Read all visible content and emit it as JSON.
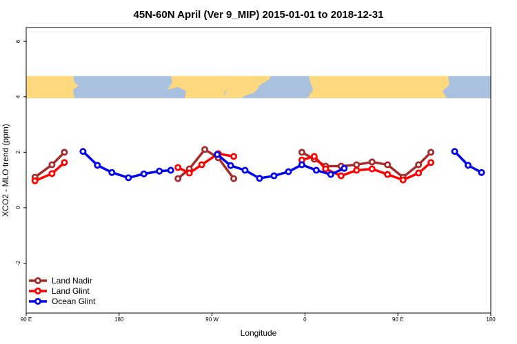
{
  "chart_data": {
    "type": "line",
    "title": "45N-60N April (Ver 9_MIP)   2015-01-01 to 2018-12-31",
    "xlabel": "Longitude",
    "ylabel": "XCO2 - MLO trend (ppm)",
    "xlim": [
      90,
      540
    ],
    "ylim": [
      -3.8,
      6.5
    ],
    "x_ticks": [
      {
        "value": 90,
        "label": "90 E"
      },
      {
        "value": 180,
        "label": "180"
      },
      {
        "value": 270,
        "label": "90 W"
      },
      {
        "value": 360,
        "label": "0"
      },
      {
        "value": 450,
        "label": "90 E"
      },
      {
        "value": 540,
        "label": "180"
      }
    ],
    "y_ticks": [
      {
        "value": -2,
        "label": "-2"
      },
      {
        "value": 0,
        "label": "0"
      },
      {
        "value": 2,
        "label": "2"
      },
      {
        "value": 4,
        "label": "4"
      },
      {
        "value": 6,
        "label": "6"
      }
    ],
    "map_band": {
      "ymin": 3.95,
      "ymax": 4.75,
      "ocean_color": "#a9c0df",
      "land_color": "#fcd87e"
    },
    "legend_position": "bottom-left",
    "series": [
      {
        "name": "Land Nadir",
        "color": "#a52a2a",
        "segments": [
          [
            [
              98.5,
              1.1
            ],
            [
              115,
              1.55
            ],
            [
              127,
              2.0
            ]
          ],
          [
            [
              237,
              1.05
            ],
            [
              248,
              1.4
            ],
            [
              263,
              2.1
            ],
            [
              276,
              1.8
            ],
            [
              291,
              1.05
            ]
          ],
          [
            [
              357,
              2.0
            ],
            [
              369,
              1.75
            ],
            [
              380,
              1.5
            ],
            [
              395,
              1.5
            ],
            [
              410,
              1.55
            ],
            [
              425,
              1.65
            ],
            [
              440,
              1.55
            ],
            [
              455,
              1.1
            ],
            [
              470,
              1.55
            ],
            [
              482,
              2.0
            ]
          ]
        ]
      },
      {
        "name": "Land Glint",
        "color": "#ff0000",
        "segments": [
          [
            [
              98.5,
              0.97
            ],
            [
              115,
              1.23
            ],
            [
              127,
              1.63
            ]
          ],
          [
            [
              237,
              1.45
            ],
            [
              248,
              1.25
            ],
            [
              260,
              1.55
            ],
            [
              276,
              1.95
            ],
            [
              291,
              1.85
            ]
          ],
          [
            [
              357,
              1.72
            ],
            [
              369,
              1.85
            ],
            [
              380,
              1.4
            ],
            [
              395,
              1.15
            ],
            [
              410,
              1.35
            ],
            [
              425,
              1.4
            ],
            [
              440,
              1.2
            ],
            [
              455,
              1.0
            ],
            [
              470,
              1.25
            ],
            [
              482,
              1.63
            ]
          ]
        ]
      },
      {
        "name": "Ocean Glint",
        "color": "#0000ee",
        "segments": [
          [
            [
              145,
              2.03
            ],
            [
              159,
              1.53
            ],
            [
              173,
              1.27
            ],
            [
              189,
              1.08
            ],
            [
              204,
              1.22
            ],
            [
              219,
              1.32
            ],
            [
              230,
              1.35
            ]
          ],
          [
            [
              275,
              1.92
            ],
            [
              288,
              1.52
            ],
            [
              302,
              1.35
            ],
            [
              316,
              1.06
            ],
            [
              330,
              1.15
            ],
            [
              344,
              1.3
            ],
            [
              357,
              1.55
            ],
            [
              371,
              1.35
            ],
            [
              385,
              1.2
            ],
            [
              398,
              1.42
            ]
          ],
          [
            [
              505,
              2.03
            ],
            [
              518,
              1.53
            ],
            [
              531,
              1.27
            ]
          ]
        ]
      }
    ]
  }
}
